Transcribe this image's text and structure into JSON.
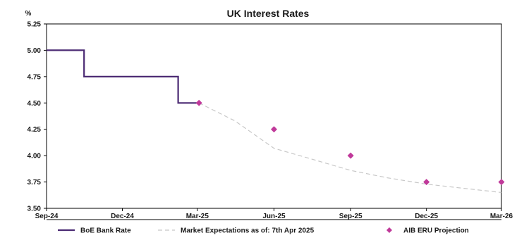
{
  "chart_data": {
    "type": "line",
    "title": "UK Interest Rates",
    "y_unit": "%",
    "xlabel": "",
    "ylabel": "",
    "x_range": [
      "2024-09-01",
      "2026-03-01"
    ],
    "ylim": [
      3.5,
      5.25
    ],
    "y_ticks": [
      "5.25",
      "5.00",
      "4.75",
      "4.50",
      "4.25",
      "4.00",
      "3.75",
      "3.50"
    ],
    "x_ticks": [
      {
        "label": "Sep-24",
        "date": "2024-09-01"
      },
      {
        "label": "Dec-24",
        "date": "2024-12-01"
      },
      {
        "label": "Mar-25",
        "date": "2025-03-01"
      },
      {
        "label": "Jun-25",
        "date": "2025-06-01"
      },
      {
        "label": "Sep-25",
        "date": "2025-09-01"
      },
      {
        "label": "Dec-25",
        "date": "2025-12-01"
      },
      {
        "label": "Mar-26",
        "date": "2026-03-01"
      }
    ],
    "grid": false,
    "legend_position": "bottom",
    "series": [
      {
        "name": "BoE Bank Rate",
        "style": "step-line",
        "color": "#4b2a73",
        "points": [
          {
            "x": "2024-09-01",
            "y": 5.0
          },
          {
            "x": "2024-10-16",
            "y": 5.0
          },
          {
            "x": "2024-10-16",
            "y": 4.75
          },
          {
            "x": "2025-02-06",
            "y": 4.75
          },
          {
            "x": "2025-02-06",
            "y": 4.5
          },
          {
            "x": "2025-03-03",
            "y": 4.5
          }
        ]
      },
      {
        "name": "Market Expectations as of: 7th Apr 2025",
        "style": "dashed-line",
        "color": "#c8c8c8",
        "points": [
          {
            "x": "2025-03-03",
            "y": 4.5
          },
          {
            "x": "2025-04-15",
            "y": 4.33
          },
          {
            "x": "2025-06-01",
            "y": 4.07
          },
          {
            "x": "2025-07-15",
            "y": 3.97
          },
          {
            "x": "2025-09-01",
            "y": 3.86
          },
          {
            "x": "2025-10-15",
            "y": 3.79
          },
          {
            "x": "2025-12-01",
            "y": 3.73
          },
          {
            "x": "2026-01-15",
            "y": 3.69
          },
          {
            "x": "2026-03-01",
            "y": 3.65
          }
        ]
      },
      {
        "name": "AIB ERU Projection",
        "style": "markers",
        "color": "#c0399a",
        "points": [
          {
            "x": "2025-03-03",
            "y": 4.5
          },
          {
            "x": "2025-06-01",
            "y": 4.25
          },
          {
            "x": "2025-09-01",
            "y": 4.0
          },
          {
            "x": "2025-12-01",
            "y": 3.75
          },
          {
            "x": "2026-03-01",
            "y": 3.75
          }
        ]
      }
    ]
  }
}
